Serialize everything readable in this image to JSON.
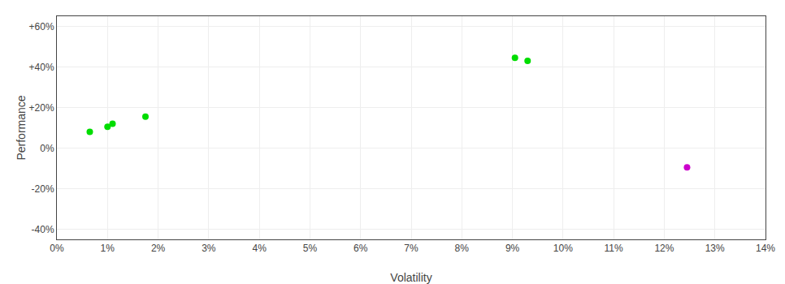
{
  "chart_data": {
    "type": "scatter",
    "xlabel": "Volatility",
    "ylabel": "Performance",
    "series": [
      {
        "color": "#00dd00",
        "x": [
          0.65,
          1.0,
          1.1,
          1.75,
          9.05,
          9.3
        ],
        "values": [
          8.0,
          10.5,
          12.0,
          15.5,
          44.5,
          43.0
        ]
      },
      {
        "color": "#cc00cc",
        "x": [
          12.45
        ],
        "values": [
          -9.5
        ]
      }
    ],
    "xlim": [
      0,
      14
    ],
    "ylim": [
      -45,
      65
    ],
    "xticks": [
      {
        "value": 0,
        "label": "0%"
      },
      {
        "value": 1,
        "label": "1%"
      },
      {
        "value": 2,
        "label": "2%"
      },
      {
        "value": 3,
        "label": "3%"
      },
      {
        "value": 4,
        "label": "4%"
      },
      {
        "value": 5,
        "label": "5%"
      },
      {
        "value": 6,
        "label": "6%"
      },
      {
        "value": 7,
        "label": "7%"
      },
      {
        "value": 8,
        "label": "8%"
      },
      {
        "value": 9,
        "label": "9%"
      },
      {
        "value": 10,
        "label": "10%"
      },
      {
        "value": 11,
        "label": "11%"
      },
      {
        "value": 12,
        "label": "12%"
      },
      {
        "value": 13,
        "label": "13%"
      },
      {
        "value": 14,
        "label": "14%"
      }
    ],
    "yticks": [
      {
        "value": -40,
        "label": "-40%"
      },
      {
        "value": -20,
        "label": "-20%"
      },
      {
        "value": 0,
        "label": "0%"
      },
      {
        "value": 20,
        "label": "+20%"
      },
      {
        "value": 40,
        "label": "+40%"
      },
      {
        "value": 60,
        "label": "+60%"
      }
    ],
    "grid": true
  }
}
